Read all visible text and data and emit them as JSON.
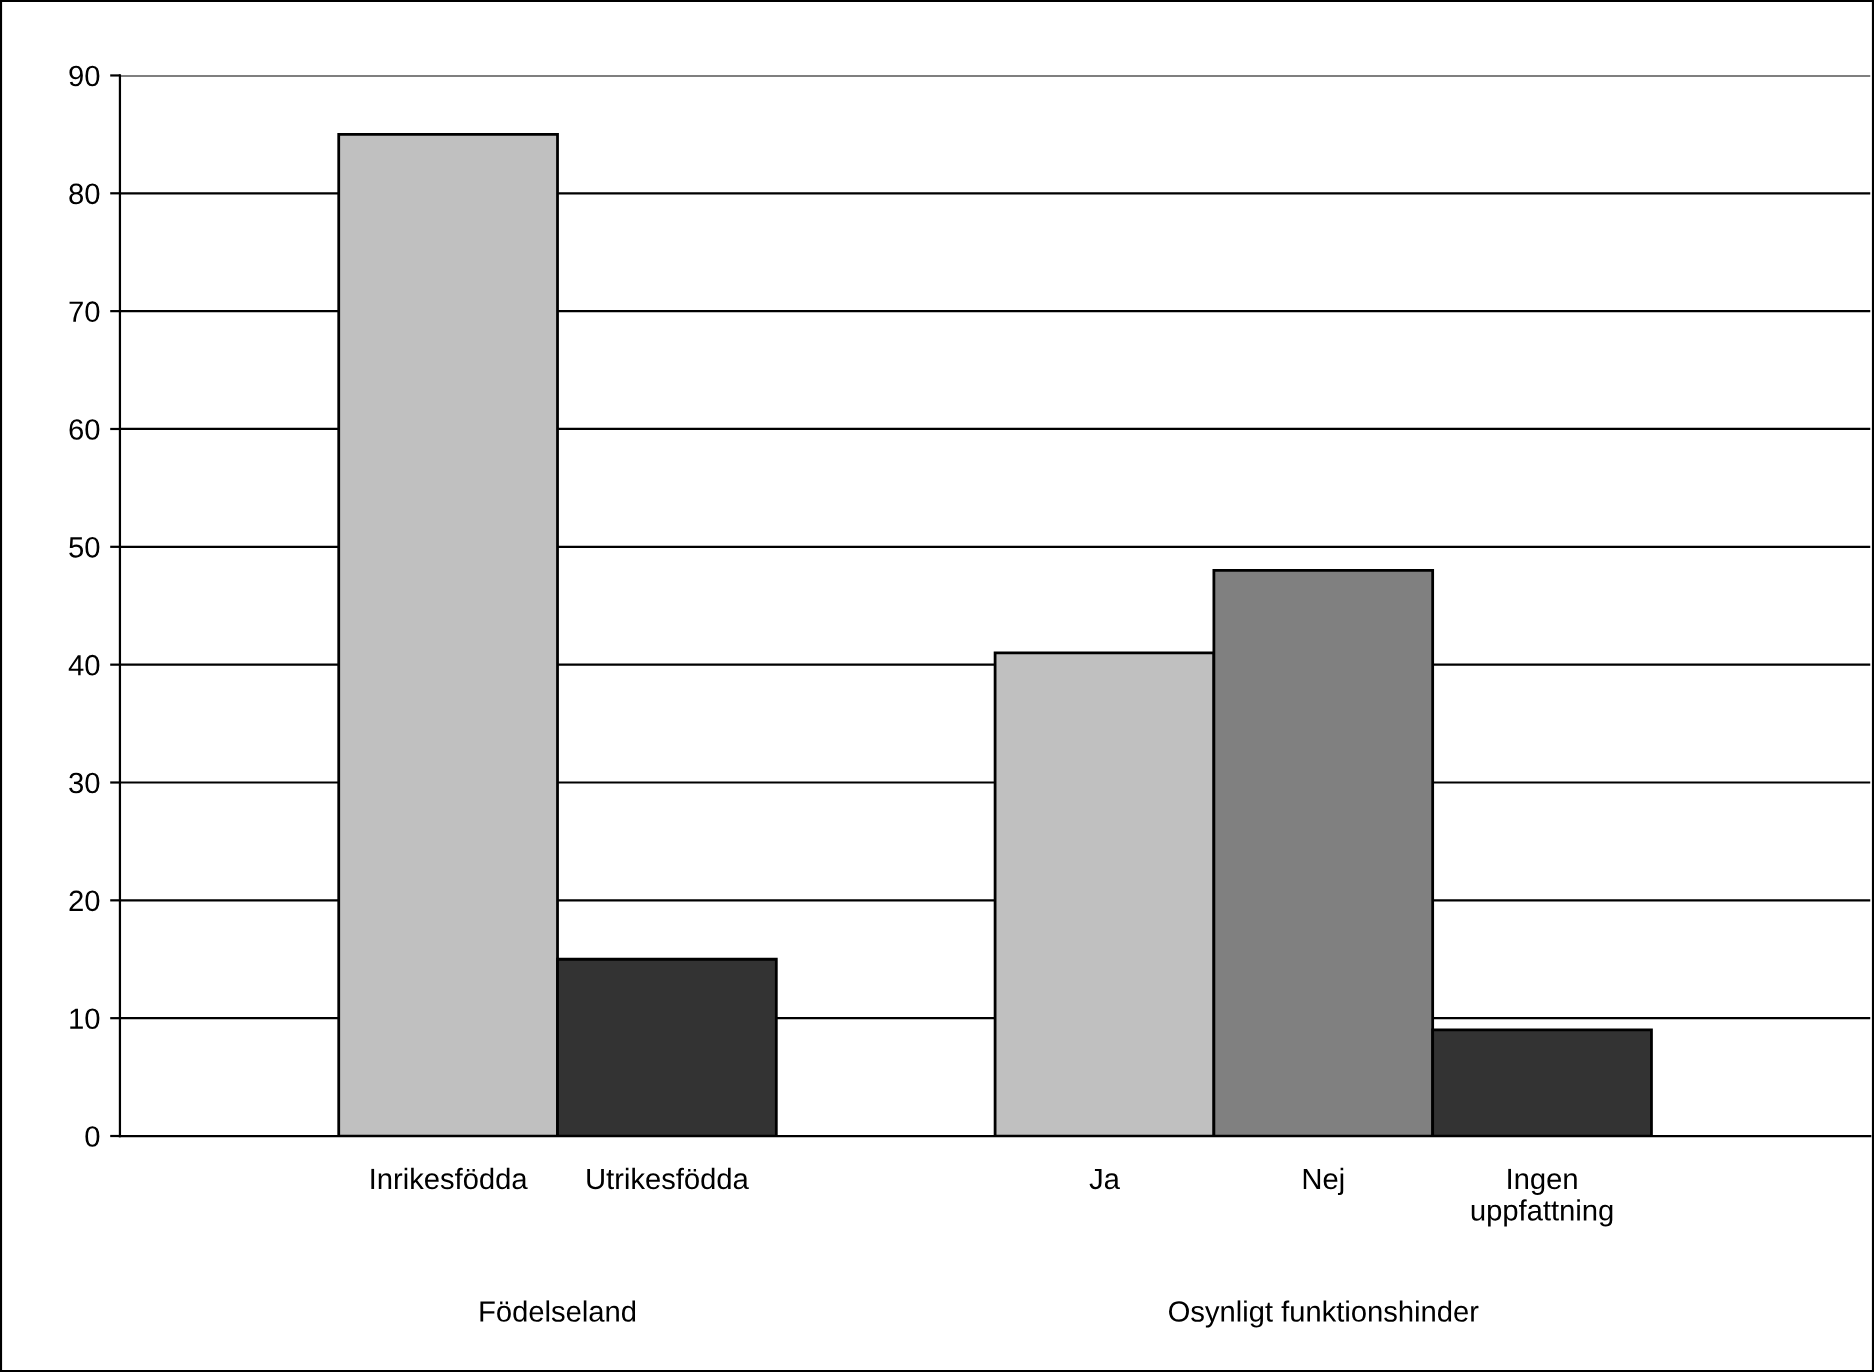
{
  "chart_data": {
    "type": "bar",
    "categories": [
      null,
      "Inrikesfödda",
      "Utrikesfödda",
      null,
      "Ja",
      "Nej",
      "Ingen uppfattning",
      null
    ],
    "values": [
      null,
      85,
      15,
      null,
      41,
      48,
      9,
      null
    ],
    "colors": [
      "#c0c0c0",
      "#c0c0c0",
      "#333333",
      "#c0c0c0",
      "#c0c0c0",
      "#808080",
      "#333333",
      "#c0c0c0"
    ],
    "ylim": [
      0,
      90
    ],
    "yticks": [
      0,
      10,
      20,
      30,
      40,
      50,
      60,
      70,
      80,
      90
    ],
    "grid": "y",
    "annotations": [
      "Födelseland",
      "Osynligt funktionshinder"
    ]
  }
}
